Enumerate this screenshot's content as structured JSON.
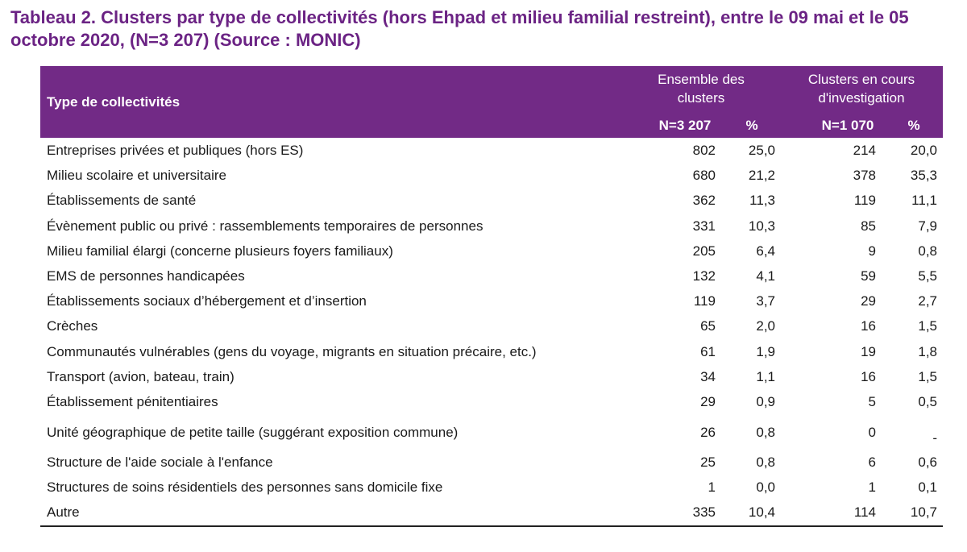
{
  "title": "Tableau 2. Clusters par type de collectivités (hors Ehpad et milieu familial restreint), entre le 09 mai et le 05 octobre 2020, (N=3 207) (Source : MONIC)",
  "header": {
    "type": "Type de collectivités",
    "ensemble": "Ensemble des clusters",
    "clusters_cours": "Clusters en cours d'investigation",
    "n_total": "N=3 207",
    "pct1": "%",
    "n_cours": "N=1 070",
    "pct2": "%"
  },
  "rows": [
    {
      "label": "Entreprises privées et publiques (hors ES)",
      "n1": "802",
      "p1": "25,0",
      "n2": "214",
      "p2": "20,0"
    },
    {
      "label": "Milieu scolaire et universitaire",
      "n1": "680",
      "p1": "21,2",
      "n2": "378",
      "p2": "35,3"
    },
    {
      "label": "Établissements de santé",
      "n1": "362",
      "p1": "11,3",
      "n2": "119",
      "p2": "11,1"
    },
    {
      "label": "Évènement public ou privé : rassemblements temporaires de personnes",
      "n1": "331",
      "p1": "10,3",
      "n2": "85",
      "p2": "7,9"
    },
    {
      "label": "Milieu familial élargi (concerne plusieurs foyers familiaux)",
      "n1": "205",
      "p1": "6,4",
      "n2": "9",
      "p2": "0,8"
    },
    {
      "label": "EMS de personnes handicapées",
      "n1": "132",
      "p1": "4,1",
      "n2": "59",
      "p2": "5,5"
    },
    {
      "label": "Établissements sociaux d’hébergement et d’insertion",
      "n1": "119",
      "p1": "3,7",
      "n2": "29",
      "p2": "2,7"
    },
    {
      "label": "Crèches",
      "n1": "65",
      "p1": "2,0",
      "n2": "16",
      "p2": "1,5"
    },
    {
      "label": "Communautés vulnérables (gens du voyage, migrants en situation précaire, etc.)",
      "n1": "61",
      "p1": "1,9",
      "n2": "19",
      "p2": "1,8"
    },
    {
      "label": "Transport (avion, bateau, train)",
      "n1": "34",
      "p1": "1,1",
      "n2": "16",
      "p2": "1,5"
    },
    {
      "label": "Établissement pénitentiaires",
      "n1": "29",
      "p1": "0,9",
      "n2": "5",
      "p2": "0,5"
    },
    {
      "label": "Unité géographique de petite taille (suggérant exposition commune)",
      "n1": "26",
      "p1": "0,8",
      "n2": "0",
      "p2": "-"
    },
    {
      "label": "Structure de l'aide sociale à l'enfance",
      "n1": "25",
      "p1": "0,8",
      "n2": "6",
      "p2": "0,6"
    },
    {
      "label": "Structures de soins résidentiels des personnes sans domicile fixe",
      "n1": "1",
      "p1": "0,0",
      "n2": "1",
      "p2": "0,1"
    },
    {
      "label": "Autre",
      "n1": "335",
      "p1": "10,4",
      "n2": "114",
      "p2": "10,7"
    }
  ]
}
